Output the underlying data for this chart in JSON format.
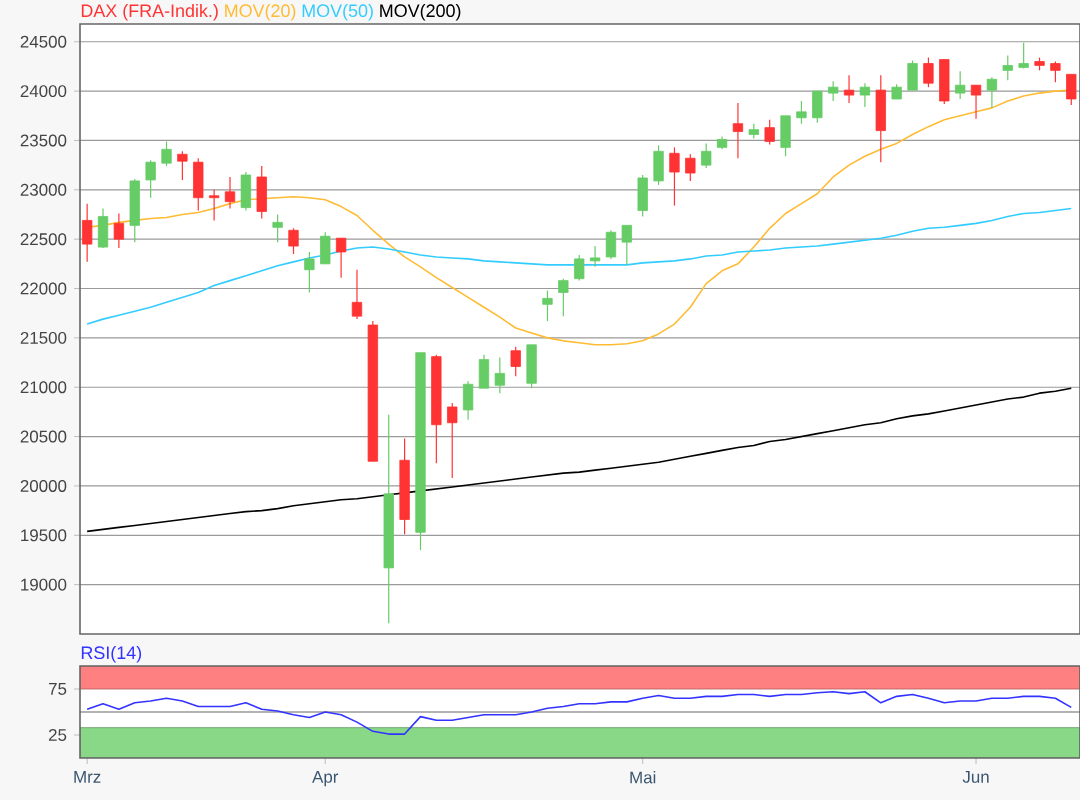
{
  "chart_data": [
    {
      "type": "candlestick",
      "categories": [
        null,
        null,
        null,
        null,
        null,
        null,
        null,
        null,
        null,
        null,
        null,
        null,
        null,
        null,
        null,
        null,
        null,
        null,
        null,
        null,
        null,
        null,
        null,
        null,
        null,
        null,
        null,
        null,
        null,
        null,
        null,
        null,
        null,
        null,
        null,
        null,
        null,
        null,
        null,
        null,
        null,
        null,
        null,
        null,
        null,
        null,
        null,
        null,
        null,
        null,
        null,
        null,
        null,
        null,
        null,
        null,
        null,
        null,
        null,
        null,
        null,
        null,
        null
      ],
      "tick_labels": "y",
      "ylim": [
        18500,
        24680
      ],
      "yticks": [
        19000,
        19500,
        20000,
        20500,
        21000,
        21500,
        22000,
        22500,
        23000,
        23500,
        24000,
        24500
      ],
      "grid": "y",
      "legend": "top left",
      "series": [
        {
          "name": "DAX (FRA-Indik.)",
          "type": "candlestick",
          "color": "#ff3333",
          "ohlc": [
            [
              22690,
              22860,
              22270,
              22450
            ],
            [
              22420,
              22810,
              22410,
              22730
            ],
            [
              22660,
              22760,
              22410,
              22500
            ],
            [
              22640,
              23110,
              22470,
              23090
            ],
            [
              23100,
              23300,
              22920,
              23280
            ],
            [
              23270,
              23490,
              23240,
              23410
            ],
            [
              23360,
              23390,
              23100,
              23290
            ],
            [
              23280,
              23320,
              22790,
              22920
            ],
            [
              22940,
              23000,
              22690,
              22920
            ],
            [
              22980,
              23130,
              22810,
              22880
            ],
            [
              22820,
              23180,
              22790,
              23150
            ],
            [
              23130,
              23240,
              22710,
              22780
            ],
            [
              22620,
              22750,
              22470,
              22670
            ],
            [
              22590,
              22610,
              22350,
              22430
            ],
            [
              22190,
              22370,
              21960,
              22300
            ],
            [
              22250,
              22570,
              22250,
              22530
            ],
            [
              22510,
              22510,
              22110,
              22370
            ],
            [
              21860,
              22190,
              21690,
              21720
            ],
            [
              21630,
              21670,
              20250,
              20250
            ],
            [
              19170,
              20720,
              18610,
              19920
            ],
            [
              20260,
              20480,
              19510,
              19660
            ],
            [
              19530,
              21350,
              19350,
              21350
            ],
            [
              21310,
              21330,
              20230,
              20620
            ],
            [
              20800,
              20840,
              20080,
              20640
            ],
            [
              20770,
              21060,
              20670,
              21030
            ],
            [
              20990,
              21330,
              20990,
              21280
            ],
            [
              21020,
              21300,
              20940,
              21140
            ],
            [
              21370,
              21410,
              21110,
              21210
            ],
            [
              21040,
              21430,
              20990,
              21430
            ],
            [
              21840,
              21980,
              21670,
              21900
            ],
            [
              21960,
              22100,
              21720,
              22080
            ],
            [
              22100,
              22340,
              22080,
              22300
            ],
            [
              22280,
              22430,
              22220,
              22310
            ],
            [
              22320,
              22590,
              22300,
              22570
            ],
            [
              22470,
              22640,
              22240,
              22640
            ],
            [
              22790,
              23150,
              22730,
              23120
            ],
            [
              23090,
              23450,
              23050,
              23390
            ],
            [
              23370,
              23430,
              22840,
              23180
            ],
            [
              23320,
              23360,
              23090,
              23170
            ],
            [
              23250,
              23470,
              23220,
              23390
            ],
            [
              23430,
              23540,
              23410,
              23510
            ],
            [
              23670,
              23880,
              23320,
              23590
            ],
            [
              23560,
              23670,
              23520,
              23610
            ],
            [
              23630,
              23710,
              23460,
              23490
            ],
            [
              23430,
              23750,
              23340,
              23750
            ],
            [
              23730,
              23900,
              23670,
              23790
            ],
            [
              23730,
              24000,
              23680,
              24000
            ],
            [
              23980,
              24100,
              23900,
              24040
            ],
            [
              24010,
              24160,
              23880,
              23960
            ],
            [
              23960,
              24080,
              23840,
              24040
            ],
            [
              24010,
              24160,
              23280,
              23600
            ],
            [
              23920,
              24070,
              23920,
              24040
            ],
            [
              24010,
              24310,
              24010,
              24280
            ],
            [
              24280,
              24340,
              24040,
              24080
            ],
            [
              24320,
              24320,
              23870,
              23900
            ],
            [
              23980,
              24200,
              23920,
              24060
            ],
            [
              24060,
              24060,
              23720,
              23960
            ],
            [
              24010,
              24140,
              23830,
              24120
            ],
            [
              24210,
              24360,
              24110,
              24260
            ],
            [
              24240,
              24490,
              24230,
              24280
            ],
            [
              24300,
              24340,
              24210,
              24260
            ],
            [
              24280,
              24300,
              24090,
              24210
            ],
            [
              24170,
              24170,
              23860,
              23920
            ]
          ],
          "colors": [
            "#ff3333",
            "#66cc66",
            "#ff3333",
            "#66cc66",
            "#66cc66",
            "#66cc66",
            "#ff3333",
            "#ff3333",
            "#ff3333",
            "#ff3333",
            "#66cc66",
            "#ff3333",
            "#66cc66",
            "#ff3333",
            "#66cc66",
            "#66cc66",
            "#ff3333",
            "#ff3333",
            "#ff3333",
            "#66cc66",
            "#ff3333",
            "#66cc66",
            "#ff3333",
            "#ff3333",
            "#66cc66",
            "#66cc66",
            "#66cc66",
            "#ff3333",
            "#66cc66",
            "#66cc66",
            "#66cc66",
            "#66cc66",
            "#66cc66",
            "#66cc66",
            "#66cc66",
            "#66cc66",
            "#66cc66",
            "#ff3333",
            "#ff3333",
            "#66cc66",
            "#66cc66",
            "#ff3333",
            "#66cc66",
            "#ff3333",
            "#66cc66",
            "#66cc66",
            "#66cc66",
            "#66cc66",
            "#ff3333",
            "#66cc66",
            "#ff3333",
            "#66cc66",
            "#66cc66",
            "#ff3333",
            "#ff3333",
            "#66cc66",
            "#ff3333",
            "#66cc66",
            "#66cc66",
            "#66cc66",
            "#ff3333",
            "#ff3333",
            "#ff3333"
          ]
        },
        {
          "name": "MOV(20)",
          "type": "line",
          "color": "#ffbb33",
          "values": [
            22620,
            22640,
            22670,
            22690,
            22710,
            22720,
            22750,
            22770,
            22810,
            22860,
            22900,
            22910,
            22920,
            22930,
            22920,
            22900,
            22830,
            22740,
            22590,
            22450,
            22320,
            22220,
            22110,
            22010,
            21910,
            21810,
            21710,
            21600,
            21550,
            21500,
            21470,
            21450,
            21430,
            21430,
            21440,
            21470,
            21540,
            21640,
            21810,
            22050,
            22180,
            22250,
            22420,
            22610,
            22760,
            22860,
            22960,
            23130,
            23250,
            23340,
            23410,
            23470,
            23560,
            23640,
            23710,
            23750,
            23790,
            23830,
            23900,
            23950,
            23980,
            24000,
            24010
          ]
        },
        {
          "name": "MOV(50)",
          "type": "line",
          "color": "#33ccff",
          "values": [
            21640,
            21690,
            21730,
            21770,
            21810,
            21860,
            21910,
            21960,
            22030,
            22080,
            22130,
            22180,
            22230,
            22270,
            22310,
            22340,
            22380,
            22410,
            22420,
            22400,
            22370,
            22340,
            22320,
            22310,
            22300,
            22280,
            22270,
            22260,
            22250,
            22240,
            22240,
            22240,
            22240,
            22240,
            22240,
            22260,
            22270,
            22280,
            22300,
            22330,
            22340,
            22370,
            22380,
            22390,
            22410,
            22420,
            22430,
            22450,
            22470,
            22490,
            22510,
            22540,
            22580,
            22610,
            22620,
            22640,
            22660,
            22690,
            22730,
            22760,
            22770,
            22790,
            22810
          ]
        },
        {
          "name": "MOV(200)",
          "type": "line",
          "color": "#000000",
          "values": [
            19540,
            19560,
            19580,
            19600,
            19620,
            19640,
            19660,
            19680,
            19700,
            19720,
            19740,
            19750,
            19770,
            19800,
            19820,
            19840,
            19860,
            19870,
            19890,
            19910,
            19930,
            19950,
            19970,
            19990,
            20010,
            20030,
            20050,
            20070,
            20090,
            20110,
            20130,
            20140,
            20160,
            20180,
            20200,
            20220,
            20240,
            20270,
            20300,
            20330,
            20360,
            20390,
            20410,
            20450,
            20470,
            20500,
            20530,
            20560,
            20590,
            20620,
            20640,
            20680,
            20710,
            20730,
            20760,
            20790,
            20820,
            20850,
            20880,
            20900,
            20940,
            20960,
            20990
          ]
        }
      ]
    },
    {
      "type": "line",
      "title": "RSI(14)",
      "categories": [
        "Mrz",
        null,
        null,
        null,
        null,
        null,
        null,
        null,
        null,
        null,
        null,
        null,
        null,
        null,
        null,
        "Apr",
        null,
        null,
        null,
        null,
        null,
        null,
        null,
        null,
        null,
        null,
        null,
        null,
        null,
        null,
        null,
        null,
        null,
        null,
        null,
        "Mai",
        null,
        null,
        null,
        null,
        null,
        null,
        null,
        null,
        null,
        null,
        null,
        null,
        null,
        null,
        null,
        null,
        null,
        null,
        null,
        null,
        "Jun",
        null,
        null,
        null,
        null,
        null,
        null
      ],
      "ylim": [
        0,
        100
      ],
      "yticks": [
        25,
        75
      ],
      "bands": [
        {
          "axis": "y",
          "from": 75,
          "to": 100,
          "color": "#ff8080"
        },
        {
          "axis": "y",
          "from": 0,
          "to": 33,
          "color": "#88d888"
        }
      ],
      "ref_lines": [
        {
          "axis": "y",
          "value": 50,
          "color": "#999999"
        }
      ],
      "series": [
        {
          "color": "#3333ff",
          "values": [
            53,
            59,
            53,
            60,
            62,
            65,
            62,
            56,
            56,
            56,
            60,
            53,
            51,
            47,
            44,
            50,
            47,
            39,
            29,
            26,
            26,
            45,
            41,
            41,
            44,
            47,
            47,
            47,
            50,
            54,
            56,
            59,
            59,
            61,
            61,
            65,
            68,
            65,
            65,
            67,
            67,
            69,
            69,
            67,
            69,
            69,
            71,
            72,
            70,
            72,
            60,
            67,
            69,
            65,
            60,
            62,
            62,
            65,
            65,
            67,
            67,
            65,
            55
          ]
        }
      ]
    }
  ]
}
